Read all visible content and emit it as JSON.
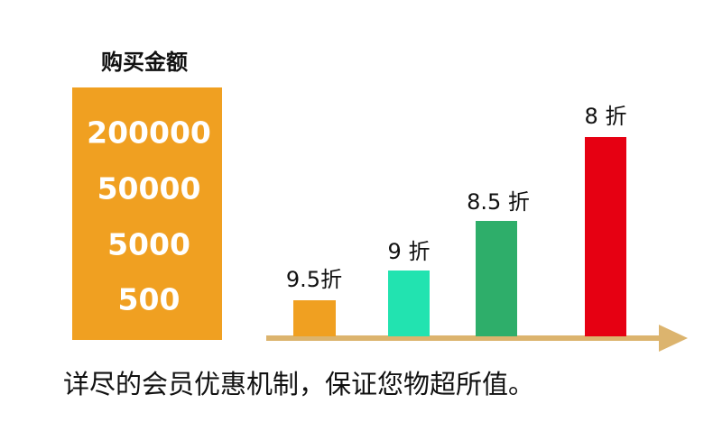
{
  "header": {
    "title": "购买金额"
  },
  "amounts": [
    200000,
    50000,
    5000,
    500
  ],
  "tiers": [
    {
      "label": "9.5折"
    },
    {
      "label": "9 折"
    },
    {
      "label": "8.5 折"
    },
    {
      "label": "8 折"
    }
  ],
  "caption": "详尽的会员优惠机制，保证您物超所值。"
}
